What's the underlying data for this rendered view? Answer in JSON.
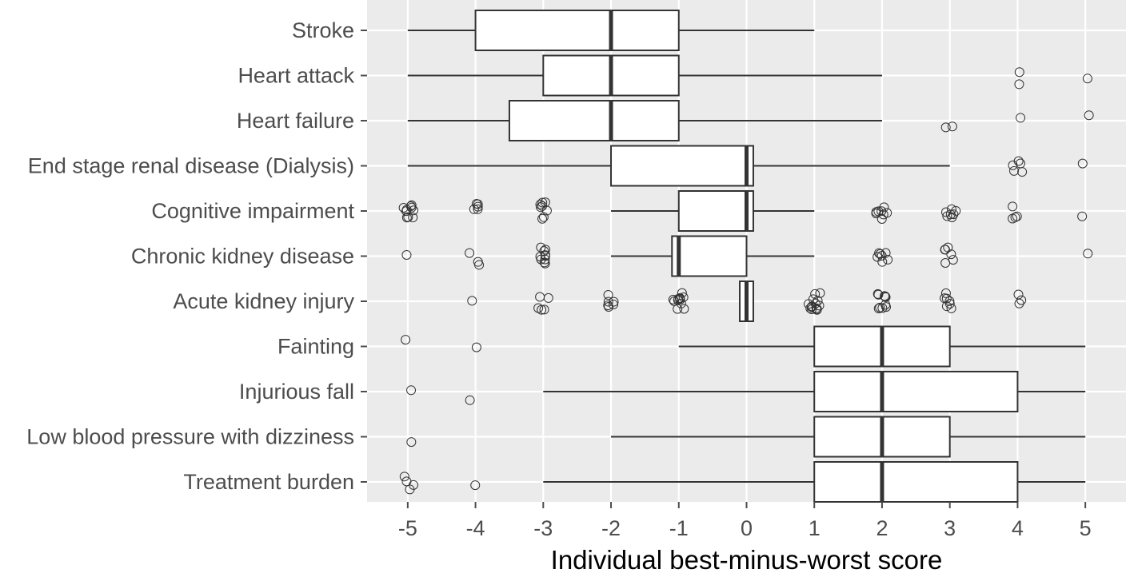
{
  "chart_data": {
    "type": "boxplot",
    "title": "",
    "xlabel": "Individual best-minus-worst score",
    "ylabel": "",
    "xlim": [
      -5.6,
      5.6
    ],
    "x_ticks": [
      -5,
      -4,
      -3,
      -2,
      -1,
      0,
      1,
      2,
      3,
      4,
      5
    ],
    "x_tick_labels": [
      "-5",
      "-4",
      "-3",
      "-2",
      "-1",
      "0",
      "1",
      "2",
      "3",
      "4",
      "5"
    ],
    "grid": true,
    "colors": {
      "panel_bg": "#ebebeb",
      "grid_major": "#ffffff",
      "box_fill": "#ffffff",
      "box_stroke": "#333333",
      "outlier_stroke": "#333333",
      "axis_text": "#4d4d4d",
      "axis_title": "#000000"
    },
    "categories": [
      "Stroke",
      "Heart attack",
      "Heart failure",
      "End stage renal disease (Dialysis)",
      "Cognitive impairment",
      "Chronic kidney disease",
      "Acute kidney injury",
      "Fainting",
      "Injurious fall",
      "Low blood pressure with dizziness",
      "Treatment burden"
    ],
    "boxes": [
      {
        "label": "Stroke",
        "whisker_low": -5,
        "q1": -4,
        "median": -2,
        "q3": -1,
        "whisker_high": 1,
        "outliers": []
      },
      {
        "label": "Heart attack",
        "whisker_low": -5,
        "q1": -3,
        "median": -2,
        "q3": -1,
        "whisker_high": 2,
        "outliers": [
          4,
          4,
          5
        ]
      },
      {
        "label": "Heart failure",
        "whisker_low": -5,
        "q1": -3.5,
        "median": -2,
        "q3": -1,
        "whisker_high": 2,
        "outliers": [
          3,
          3,
          4,
          5
        ]
      },
      {
        "label": "End stage renal disease (Dialysis)",
        "whisker_low": -5,
        "q1": -2,
        "median": 0,
        "q3": 0.1,
        "whisker_high": 3,
        "outliers": [
          4,
          4,
          4,
          4,
          4,
          5
        ]
      },
      {
        "label": "Cognitive impairment",
        "whisker_low": -2,
        "q1": -1,
        "median": 0,
        "q3": 0.1,
        "whisker_high": 1,
        "outliers": [
          -5,
          -5,
          -5,
          -5,
          -5,
          -5,
          -5,
          -5,
          -5,
          -5,
          -4,
          -4,
          -4,
          -4,
          -4,
          -3,
          -3,
          -3,
          -3,
          -3,
          -3,
          -3,
          -3,
          2,
          2,
          2,
          2,
          2,
          2,
          2,
          2,
          3,
          3,
          3,
          3,
          3,
          3,
          3,
          4,
          4,
          4,
          4,
          5
        ]
      },
      {
        "label": "Chronic kidney disease",
        "whisker_low": -2,
        "q1": -1.1,
        "median": -1,
        "q3": 0,
        "whisker_high": 1,
        "outliers": [
          -5,
          -4,
          -4,
          -4,
          -3,
          -3,
          -3,
          -3,
          -3,
          -3,
          -3,
          -3,
          -3,
          -3,
          2,
          2,
          2,
          2,
          2,
          2,
          2,
          3,
          3,
          3,
          3,
          3,
          3,
          5
        ]
      },
      {
        "label": "Acute kidney injury",
        "whisker_low": -0.1,
        "q1": -0.1,
        "median": 0,
        "q3": 0.1,
        "whisker_high": 0.1,
        "outliers": [
          -4,
          -3,
          -3,
          -3,
          -3,
          -3,
          -2,
          -2,
          -2,
          -2,
          -2,
          -2,
          -1,
          -1,
          -1,
          -1,
          -1,
          -1,
          -1,
          -1,
          -1,
          -1,
          -1,
          -1,
          1,
          1,
          1,
          1,
          1,
          1,
          1,
          1,
          1,
          1,
          1,
          1,
          1,
          1,
          2,
          2,
          2,
          2,
          2,
          2,
          2,
          2,
          2,
          2,
          3,
          3,
          3,
          3,
          3,
          3,
          3,
          4,
          4,
          4
        ]
      },
      {
        "label": "Fainting",
        "whisker_low": -1,
        "q1": 1,
        "median": 2,
        "q3": 3,
        "whisker_high": 5,
        "outliers": [
          -5,
          -4
        ]
      },
      {
        "label": "Injurious fall",
        "whisker_low": -3,
        "q1": 1,
        "median": 2,
        "q3": 4,
        "whisker_high": 5,
        "outliers": [
          -5,
          -4
        ]
      },
      {
        "label": "Low blood pressure with dizziness",
        "whisker_low": -2,
        "q1": 1,
        "median": 2,
        "q3": 3,
        "whisker_high": 5,
        "outliers": [
          -5
        ]
      },
      {
        "label": "Treatment burden",
        "whisker_low": -3,
        "q1": 1,
        "median": 2,
        "q3": 4,
        "whisker_high": 5,
        "outliers": [
          -5,
          -5,
          -5,
          -5,
          -4
        ]
      }
    ]
  }
}
